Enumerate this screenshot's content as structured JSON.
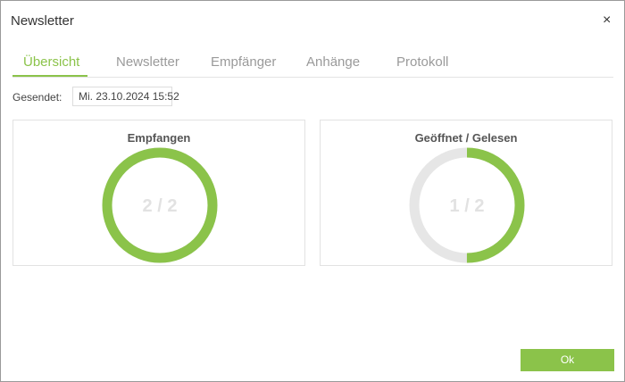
{
  "header": {
    "title": "Newsletter",
    "close": "×"
  },
  "tabs": [
    "Übersicht",
    "Newsletter",
    "Empfänger",
    "Anhänge",
    "Protokoll"
  ],
  "sent": {
    "label": "Gesendet:",
    "value": "Mi. 23.10.2024 15:52"
  },
  "panels": [
    {
      "title": "Empfangen",
      "label": "2 / 2",
      "value": 2,
      "total": 2
    },
    {
      "title": "Geöffnet / Gelesen",
      "label": "1 / 2",
      "value": 1,
      "total": 2
    }
  ],
  "button": "Ok"
}
